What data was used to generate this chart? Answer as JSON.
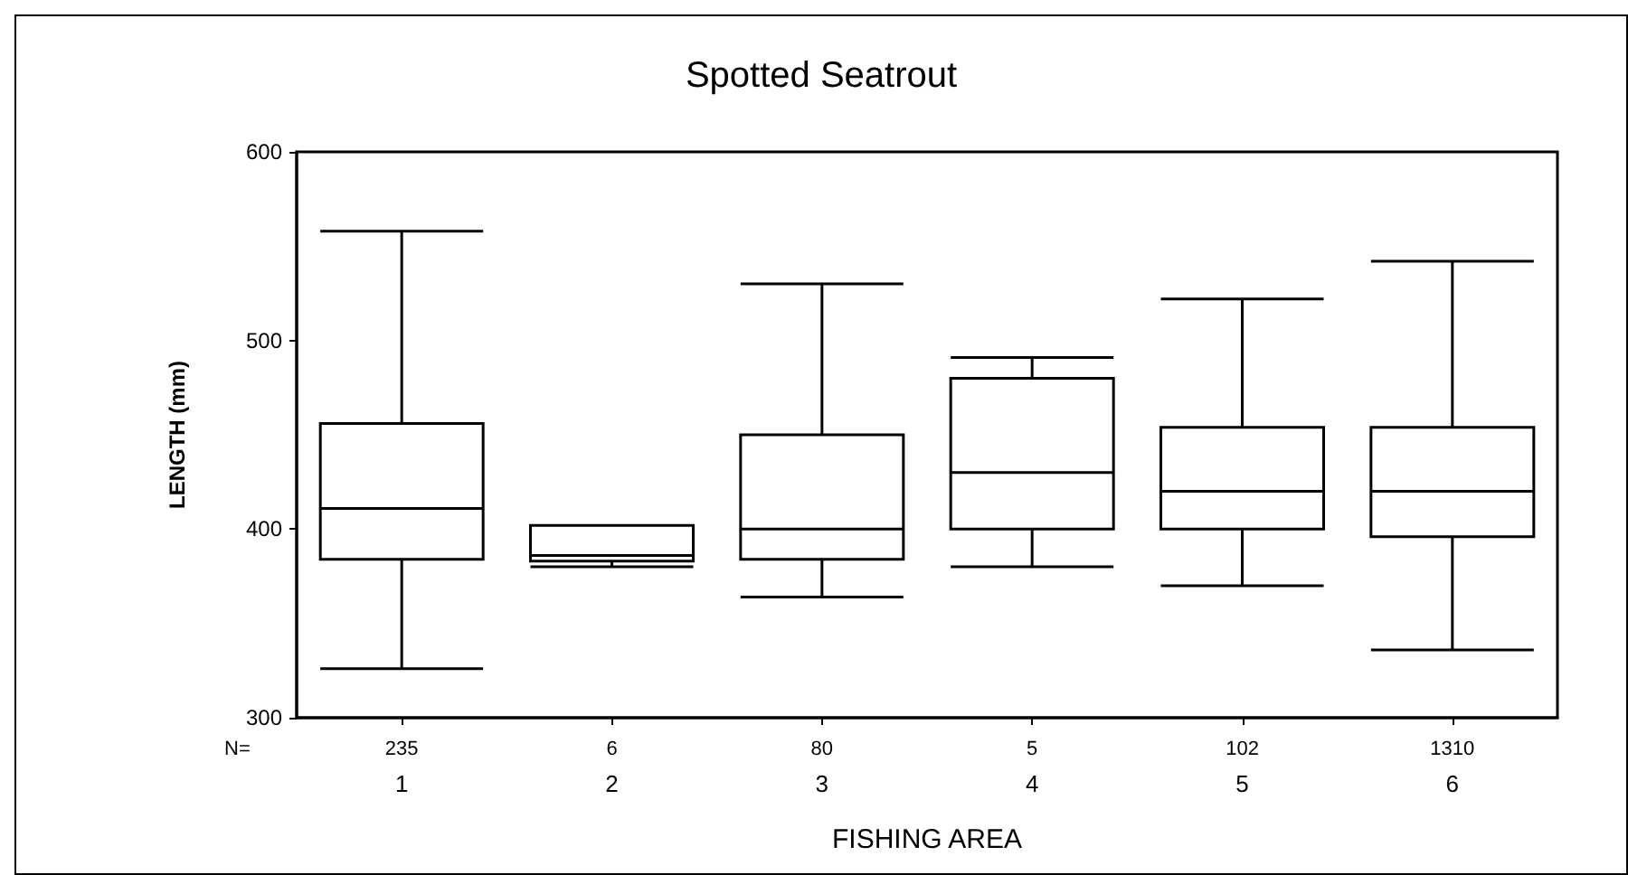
{
  "chart_data": {
    "type": "box",
    "title": "Spotted Seatrout",
    "xlabel": "FISHING AREA",
    "ylabel": "LENGTH (mm)",
    "categories": [
      "1",
      "2",
      "3",
      "4",
      "5",
      "6"
    ],
    "boxes": [
      {
        "low": 326,
        "q1": 384,
        "median": 411,
        "q3": 456,
        "high": 558
      },
      {
        "low": 380,
        "q1": 383,
        "median": 386,
        "q3": 402,
        "high": 402
      },
      {
        "low": 364,
        "q1": 384,
        "median": 400,
        "q3": 450,
        "high": 530
      },
      {
        "low": 380,
        "q1": 400,
        "median": 430,
        "q3": 480,
        "high": 491
      },
      {
        "low": 370,
        "q1": 400,
        "median": 420,
        "q3": 454,
        "high": 522
      },
      {
        "low": 336,
        "q1": 396,
        "median": 420,
        "q3": 454,
        "high": 542
      }
    ],
    "color": "#000000",
    "annotations": [
      "N=",
      "235",
      "6",
      "80",
      "5",
      "102",
      "1310"
    ],
    "ylim": [
      300,
      600
    ],
    "yticks": [
      300,
      400,
      500,
      600
    ],
    "grid": false
  }
}
